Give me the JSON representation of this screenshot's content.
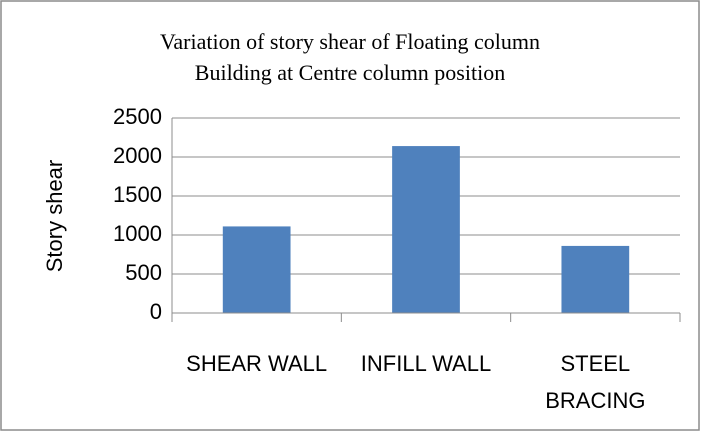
{
  "chart_data": {
    "type": "bar",
    "title": [
      "Variation of story shear of Floating column",
      "Building at Centre column position"
    ],
    "y_label": "Story shear",
    "categories": [
      "SHEAR WALL",
      "INFILL WALL",
      "STEEL BRACING"
    ],
    "values": [
      1110,
      2140,
      860
    ],
    "color": "#4f81bd",
    "ylim": [
      0,
      2500
    ],
    "yticks": [
      0,
      500,
      1000,
      1500,
      2000,
      2500
    ],
    "grid": true
  }
}
